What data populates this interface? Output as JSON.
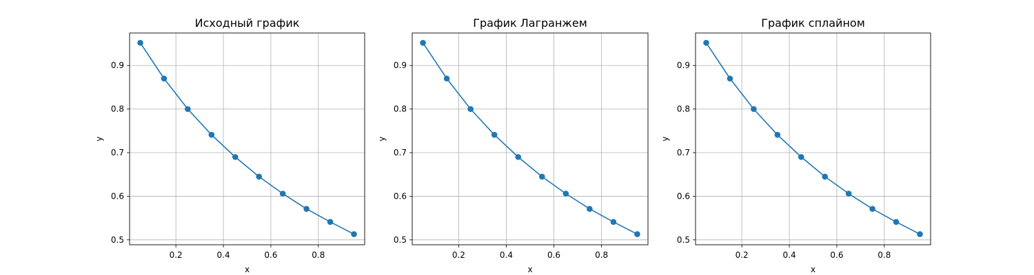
{
  "chart_data": [
    {
      "type": "line",
      "title": "Исходный график",
      "xlabel": "x",
      "ylabel": "y",
      "xlim": [
        0.005,
        0.995
      ],
      "ylim": [
        0.4887,
        0.9745
      ],
      "xticks": [
        0.2,
        0.4,
        0.6,
        0.8
      ],
      "xtick_labels": [
        "0.2",
        "0.4",
        "0.6",
        "0.8"
      ],
      "yticks": [
        0.5,
        0.6,
        0.7,
        0.8,
        0.9
      ],
      "ytick_labels": [
        "0.5",
        "0.6",
        "0.7",
        "0.8",
        "0.9"
      ],
      "grid": true,
      "color": "#1f77b4",
      "x": [
        0.05,
        0.15,
        0.25,
        0.35,
        0.45,
        0.55,
        0.65,
        0.75,
        0.85,
        0.95
      ],
      "y": [
        0.952,
        0.87,
        0.8,
        0.741,
        0.69,
        0.645,
        0.606,
        0.571,
        0.541,
        0.513
      ]
    },
    {
      "type": "line",
      "title": "График Лагранжем",
      "xlabel": "x",
      "ylabel": "y",
      "xlim": [
        0.005,
        0.995
      ],
      "ylim": [
        0.4887,
        0.9745
      ],
      "xticks": [
        0.2,
        0.4,
        0.6,
        0.8
      ],
      "xtick_labels": [
        "0.2",
        "0.4",
        "0.6",
        "0.8"
      ],
      "yticks": [
        0.5,
        0.6,
        0.7,
        0.8,
        0.9
      ],
      "ytick_labels": [
        "0.5",
        "0.6",
        "0.7",
        "0.8",
        "0.9"
      ],
      "grid": true,
      "color": "#1f77b4",
      "x": [
        0.05,
        0.15,
        0.25,
        0.35,
        0.45,
        0.55,
        0.65,
        0.75,
        0.85,
        0.95
      ],
      "y": [
        0.952,
        0.87,
        0.8,
        0.741,
        0.69,
        0.645,
        0.606,
        0.571,
        0.541,
        0.513
      ]
    },
    {
      "type": "line",
      "title": "График сплайном",
      "xlabel": "x",
      "ylabel": "y",
      "xlim": [
        0.005,
        0.995
      ],
      "ylim": [
        0.4887,
        0.9745
      ],
      "xticks": [
        0.2,
        0.4,
        0.6,
        0.8
      ],
      "xtick_labels": [
        "0.2",
        "0.4",
        "0.6",
        "0.8"
      ],
      "yticks": [
        0.5,
        0.6,
        0.7,
        0.8,
        0.9
      ],
      "ytick_labels": [
        "0.5",
        "0.6",
        "0.7",
        "0.8",
        "0.9"
      ],
      "grid": true,
      "color": "#1f77b4",
      "x": [
        0.05,
        0.15,
        0.25,
        0.35,
        0.45,
        0.55,
        0.65,
        0.75,
        0.85,
        0.95
      ],
      "y": [
        0.952,
        0.87,
        0.8,
        0.741,
        0.69,
        0.645,
        0.606,
        0.571,
        0.541,
        0.513
      ]
    }
  ]
}
